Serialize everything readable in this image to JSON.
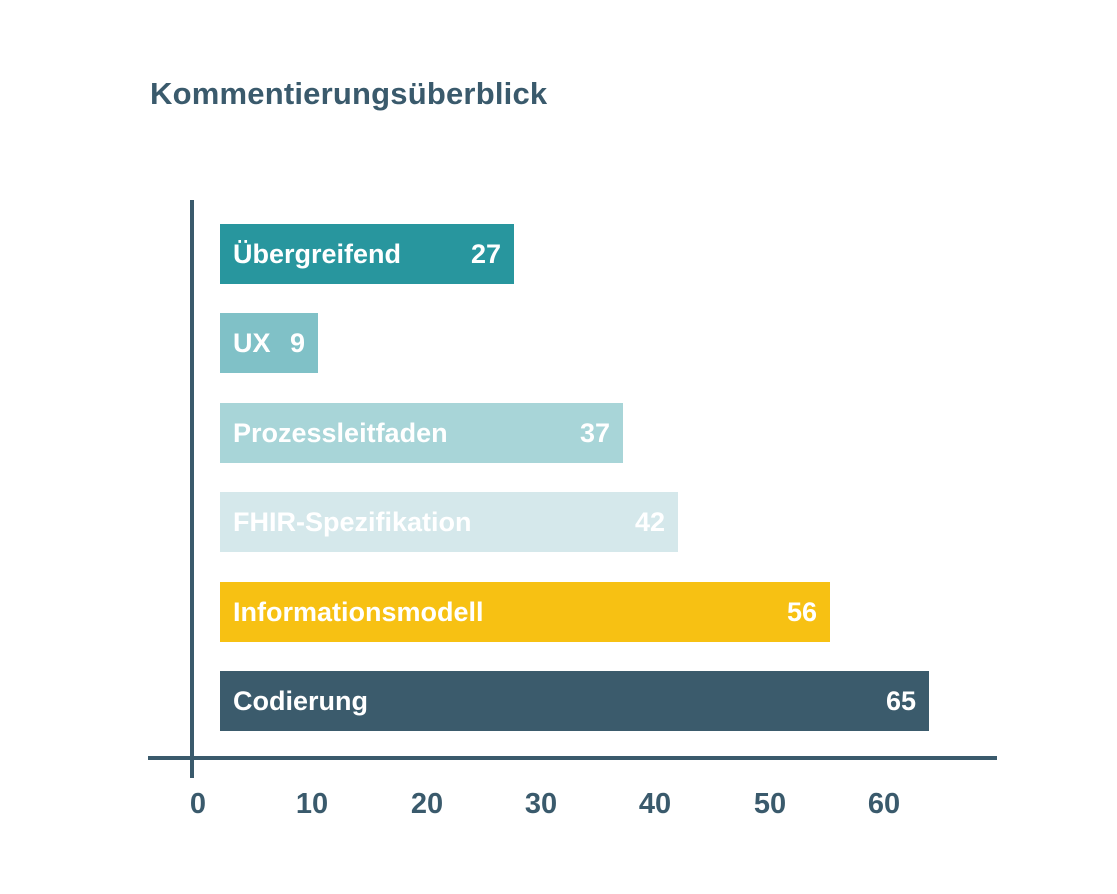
{
  "chart_data": {
    "type": "bar",
    "orientation": "horizontal",
    "title": "Kommentierungsüberblick",
    "title_color": "#3a5a6c",
    "axis_color": "#3a5a6c",
    "tick_label_color": "#3a5a6c",
    "bar_label_color": "#ffffff",
    "grid": false,
    "legend": "none",
    "xlabel": "",
    "ylabel": "",
    "xlim": [
      0,
      70
    ],
    "x_ticks": [
      "0",
      "10",
      "20",
      "30",
      "40",
      "50",
      "60"
    ],
    "categories": [
      "Übergreifend",
      "UX",
      "Prozessleitfaden",
      "FHIR-Spezifikation",
      "Informationsmodell",
      "Codierung"
    ],
    "values": [
      27,
      9,
      37,
      42,
      56,
      65
    ],
    "series": [
      {
        "label": "Übergreifend",
        "value": 27,
        "color": "#28969e"
      },
      {
        "label": "UX",
        "value": 9,
        "color": "#80c1c7"
      },
      {
        "label": "Prozessleitfaden",
        "value": 37,
        "color": "#a8d5d8"
      },
      {
        "label": "FHIR-Spezifikation",
        "value": 42,
        "color": "#d5e8eb"
      },
      {
        "label": "Informationsmodell",
        "value": 56,
        "color": "#f7c113"
      },
      {
        "label": "Codierung",
        "value": 65,
        "color": "#3b5b6c"
      }
    ]
  }
}
